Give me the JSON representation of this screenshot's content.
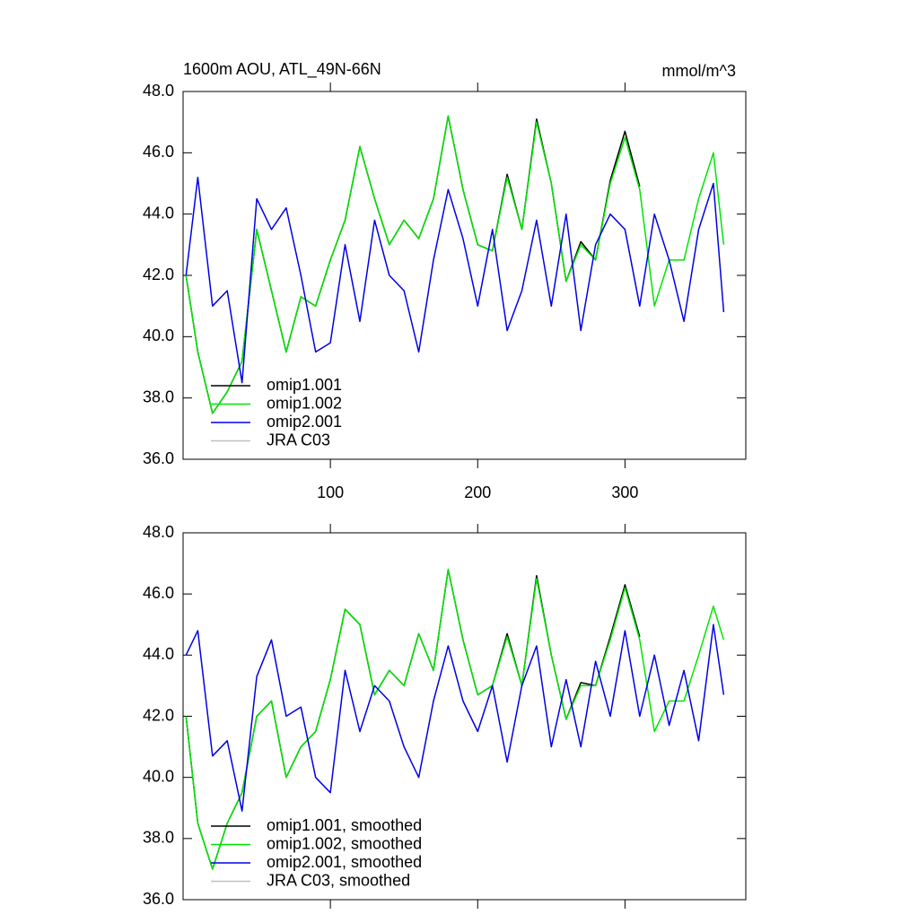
{
  "chart_data": [
    {
      "type": "line",
      "title": "1600m AOU, ATL_49N-66N",
      "units": "mmol/m^3",
      "x": [
        2,
        10,
        20,
        30,
        40,
        50,
        60,
        70,
        80,
        90,
        100,
        110,
        120,
        130,
        140,
        150,
        160,
        170,
        180,
        190,
        200,
        210,
        220,
        230,
        240,
        250,
        260,
        270,
        280,
        290,
        300,
        310,
        320,
        330,
        340,
        350,
        360,
        367
      ],
      "xlim": [
        0,
        382
      ],
      "xticks": [
        100,
        200,
        300
      ],
      "ylim": [
        36,
        48
      ],
      "yticks": [
        {
          "value": 36,
          "label": "36.0"
        },
        {
          "value": 38,
          "label": "38.0"
        },
        {
          "value": 40,
          "label": "40.0"
        },
        {
          "value": 42,
          "label": "42.0"
        },
        {
          "value": 44,
          "label": "44.0"
        },
        {
          "value": 46,
          "label": "46.0"
        },
        {
          "value": 48,
          "label": "48.0"
        }
      ],
      "legend": "lower left",
      "series": [
        {
          "name": "omip1.001",
          "color": "#000000",
          "values": [
            42.0,
            39.5,
            37.5,
            38.2,
            39.2,
            43.5,
            41.5,
            39.5,
            41.3,
            41.0,
            42.5,
            43.8,
            46.2,
            44.5,
            43.0,
            43.8,
            43.2,
            44.5,
            47.2,
            44.8,
            43.0,
            42.8,
            45.3,
            43.5,
            47.1,
            45.0,
            41.8,
            43.1,
            42.5,
            45.1,
            46.7,
            44.9,
            null,
            null,
            null,
            null,
            null,
            null
          ]
        },
        {
          "name": "omip1.002",
          "color": "#00e600",
          "values": [
            42.0,
            39.5,
            37.5,
            38.2,
            39.2,
            43.5,
            41.5,
            39.5,
            41.3,
            41.0,
            42.5,
            43.8,
            46.2,
            44.5,
            43.0,
            43.8,
            43.2,
            44.5,
            47.2,
            44.8,
            43.0,
            42.8,
            45.2,
            43.5,
            47.0,
            45.0,
            41.8,
            43.0,
            42.5,
            45.0,
            46.5,
            44.8,
            41.0,
            42.5,
            42.5,
            44.5,
            46.0,
            43.0
          ]
        },
        {
          "name": "omip2.001",
          "color": "#0000e6",
          "values": [
            42.0,
            45.2,
            41.0,
            41.5,
            38.5,
            44.5,
            43.5,
            44.2,
            42.0,
            39.5,
            39.8,
            43.0,
            40.5,
            43.8,
            42.0,
            41.5,
            39.5,
            42.5,
            44.8,
            43.2,
            41.0,
            43.5,
            40.2,
            41.5,
            43.8,
            41.0,
            44.0,
            40.2,
            43.0,
            44.0,
            43.5,
            41.0,
            44.0,
            42.5,
            40.5,
            43.5,
            45.0,
            40.8
          ]
        },
        {
          "name": "JRA C03",
          "color": "#c0c0c0",
          "values": [
            null,
            null,
            null,
            null,
            null,
            null,
            null,
            null,
            null,
            null,
            null,
            null,
            null,
            null,
            null,
            null,
            null,
            null,
            null,
            null,
            null,
            null,
            null,
            null,
            null,
            null,
            null,
            null,
            null,
            null,
            null,
            null,
            null,
            null,
            null,
            null,
            null,
            null
          ]
        }
      ]
    },
    {
      "type": "line",
      "x": [
        2,
        10,
        20,
        30,
        40,
        50,
        60,
        70,
        80,
        90,
        100,
        110,
        120,
        130,
        140,
        150,
        160,
        170,
        180,
        190,
        200,
        210,
        220,
        230,
        240,
        250,
        260,
        270,
        280,
        290,
        300,
        310,
        320,
        330,
        340,
        350,
        360,
        367
      ],
      "xlim": [
        0,
        382
      ],
      "ylim": [
        36,
        48
      ],
      "yticks": [
        {
          "value": 36,
          "label": "36.0"
        },
        {
          "value": 38,
          "label": "38.0"
        },
        {
          "value": 40,
          "label": "40.0"
        },
        {
          "value": 42,
          "label": "42.0"
        },
        {
          "value": 44,
          "label": "44.0"
        },
        {
          "value": 46,
          "label": "46.0"
        },
        {
          "value": 48,
          "label": "48.0"
        }
      ],
      "legend": "lower left",
      "series": [
        {
          "name": "omip1.001, smoothed",
          "color": "#000000",
          "values": [
            42.0,
            38.5,
            37.0,
            38.5,
            39.5,
            42.0,
            42.5,
            40.0,
            41.0,
            41.5,
            43.2,
            45.5,
            45.0,
            42.7,
            43.5,
            43.0,
            44.7,
            43.5,
            46.8,
            44.5,
            42.7,
            43.0,
            44.7,
            43.0,
            46.6,
            44.0,
            41.9,
            43.1,
            43.0,
            44.6,
            46.3,
            44.6,
            null,
            null,
            null,
            null,
            null,
            null
          ]
        },
        {
          "name": "omip1.002, smoothed",
          "color": "#00e600",
          "values": [
            42.0,
            38.5,
            37.0,
            38.5,
            39.5,
            42.0,
            42.5,
            40.0,
            41.0,
            41.5,
            43.2,
            45.5,
            45.0,
            42.7,
            43.5,
            43.0,
            44.7,
            43.5,
            46.8,
            44.5,
            42.7,
            43.0,
            44.6,
            43.0,
            46.5,
            44.0,
            41.9,
            43.0,
            43.0,
            44.5,
            46.2,
            44.5,
            41.5,
            42.5,
            42.5,
            44.0,
            45.6,
            44.5
          ]
        },
        {
          "name": "omip2.001, smoothed",
          "color": "#0000e6",
          "values": [
            44.0,
            44.8,
            40.7,
            41.2,
            38.9,
            43.3,
            44.5,
            42.0,
            42.3,
            40.0,
            39.5,
            43.5,
            41.5,
            43.0,
            42.5,
            41.0,
            40.0,
            42.5,
            44.3,
            42.5,
            41.5,
            43.0,
            40.5,
            43.0,
            44.3,
            41.0,
            43.2,
            41.0,
            43.8,
            42.0,
            44.8,
            42.0,
            44.0,
            41.7,
            43.5,
            41.2,
            45.0,
            42.7
          ]
        },
        {
          "name": "JRA C03, smoothed",
          "color": "#c0c0c0",
          "values": [
            null,
            null,
            null,
            null,
            null,
            null,
            null,
            null,
            null,
            null,
            null,
            null,
            null,
            null,
            null,
            null,
            null,
            null,
            null,
            null,
            null,
            null,
            null,
            null,
            null,
            null,
            null,
            null,
            null,
            null,
            null,
            null,
            null,
            null,
            null,
            null,
            null,
            null
          ]
        }
      ]
    }
  ]
}
